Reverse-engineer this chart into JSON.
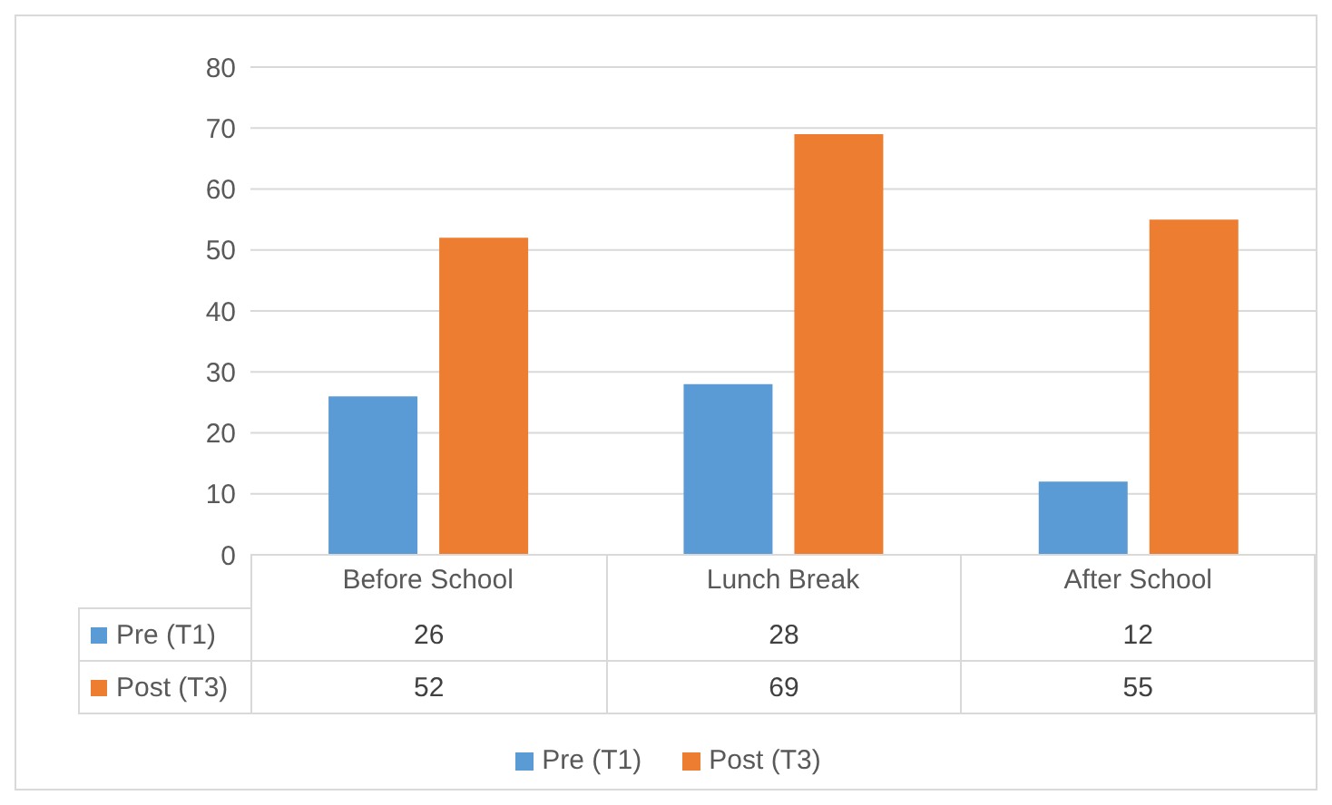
{
  "chart_data": {
    "type": "bar",
    "categories": [
      "Before School",
      "Lunch Break",
      "After School"
    ],
    "series": [
      {
        "name": "Pre (T1)",
        "color": "#5b9bd5",
        "values": [
          26,
          28,
          12
        ]
      },
      {
        "name": "Post (T3)",
        "color": "#ed7d31",
        "values": [
          52,
          69,
          55
        ]
      }
    ],
    "ylim": [
      0,
      80
    ],
    "yticks": [
      0,
      10,
      20,
      30,
      40,
      50,
      60,
      70,
      80
    ],
    "grid": "y",
    "legend": "bottom",
    "data_labels": true
  }
}
